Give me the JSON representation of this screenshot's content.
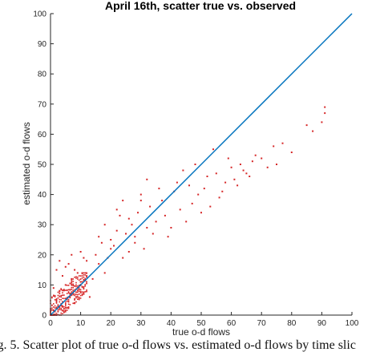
{
  "chart_data": {
    "type": "scatter",
    "title": "April 16th, scatter true vs. observed",
    "xlabel": "true o-d flows",
    "ylabel": "estimated o-d flows",
    "xlim": [
      0,
      100
    ],
    "ylim": [
      0,
      100
    ],
    "xticks": [
      "0",
      "10",
      "20",
      "30",
      "40",
      "50",
      "60",
      "70",
      "80",
      "90",
      "100"
    ],
    "yticks": [
      "0",
      "10",
      "20",
      "30",
      "40",
      "50",
      "60",
      "70",
      "80",
      "90",
      "100"
    ],
    "grid": false,
    "colors": {
      "points": "#d62728",
      "reference_line": "#0072bd",
      "axes": "#262626"
    },
    "reference_line": {
      "x": [
        0,
        100
      ],
      "y": [
        0,
        100
      ]
    },
    "series": [
      {
        "x": [
          2,
          3,
          4,
          5,
          6,
          7,
          8,
          9,
          10,
          11,
          12,
          13,
          2,
          3,
          5,
          7,
          9,
          11,
          1,
          4,
          6,
          8,
          10,
          12,
          14,
          15,
          16,
          17,
          18,
          19,
          20,
          16,
          18,
          20,
          22,
          24,
          21,
          23,
          25,
          26,
          27,
          28,
          22,
          24,
          26,
          28,
          30,
          32,
          29,
          31,
          33,
          35,
          34,
          36,
          30,
          32,
          38,
          40,
          42,
          37,
          39,
          41,
          43,
          44,
          45,
          46,
          47,
          48,
          50,
          52,
          49,
          51,
          53,
          55,
          54,
          56,
          58,
          60,
          57,
          59,
          61,
          63,
          62,
          64,
          66,
          68,
          65,
          67,
          70,
          72,
          74,
          75,
          77,
          80,
          85,
          87,
          90,
          91,
          91
        ],
        "y": [
          5,
          8,
          3,
          10,
          6,
          12,
          4,
          9,
          11,
          7,
          13,
          6,
          15,
          18,
          16,
          20,
          14,
          19,
          9,
          13,
          17,
          15,
          21,
          18,
          12,
          20,
          17,
          24,
          14,
          19,
          22,
          26,
          30,
          25,
          28,
          19,
          23,
          33,
          27,
          21,
          30,
          24,
          35,
          38,
          32,
          26,
          40,
          29,
          34,
          22,
          36,
          31,
          27,
          42,
          38,
          45,
          33,
          29,
          44,
          38,
          26,
          41,
          35,
          48,
          31,
          43,
          37,
          50,
          34,
          46,
          40,
          42,
          36,
          47,
          55,
          39,
          44,
          49,
          41,
          52,
          45,
          50,
          43,
          48,
          46,
          53,
          47,
          51,
          52,
          49,
          56,
          50,
          57,
          54,
          63,
          61,
          64,
          67,
          69
        ]
      }
    ]
  },
  "caption": "ig. 5.   Scatter plot of true o-d flows vs. estimated o-d flows by time slic"
}
